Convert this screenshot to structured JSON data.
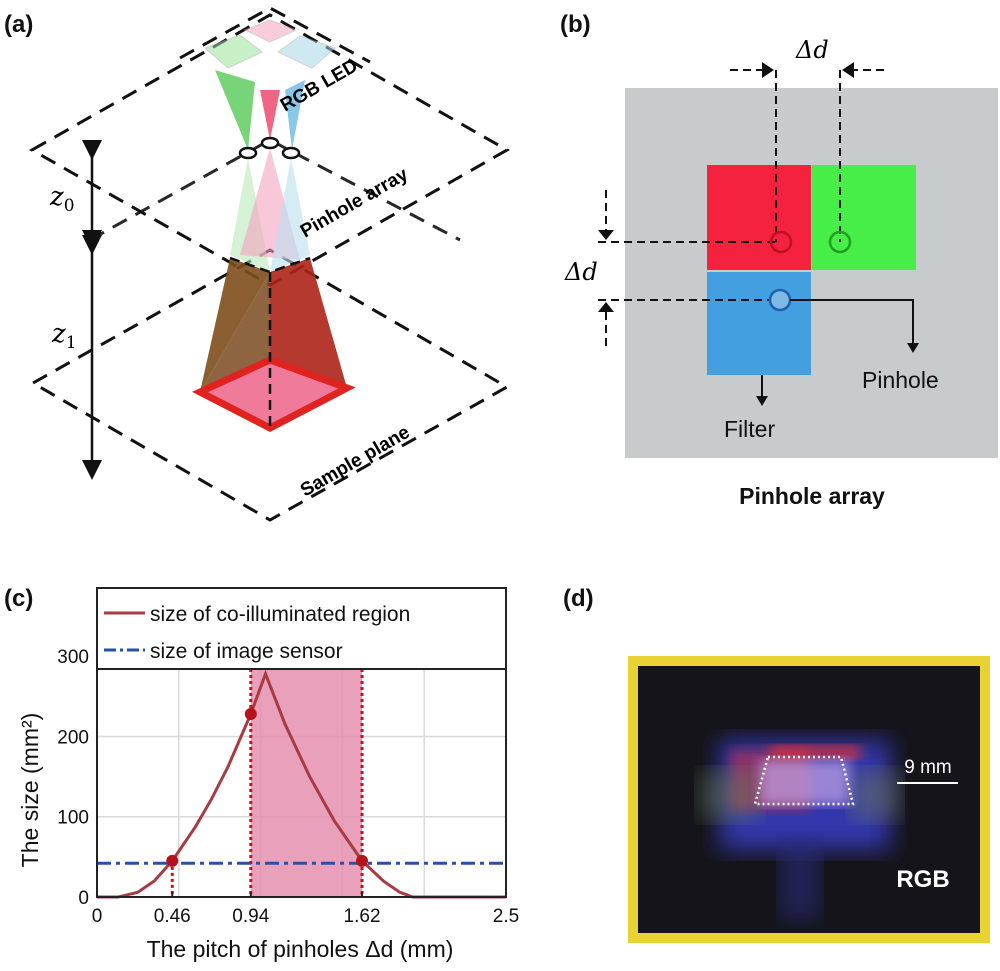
{
  "panels": {
    "a": {
      "label": "(a)",
      "led_label": "RGB LED",
      "pinhole_label": "Pinhole array",
      "sample_label": "Sample plane",
      "z0": "z",
      "z0_sub": "0",
      "z1": "z",
      "z1_sub": "1"
    },
    "b": {
      "label": "(b)",
      "delta_d_top": "Δd",
      "delta_d_left": "Δd",
      "pinhole_label": "Pinhole",
      "filter_label": "Filter",
      "caption": "Pinhole array",
      "colors": {
        "red": "#f5223f",
        "green": "#48ee48",
        "blue": "#449fe0",
        "background": "#c8cbcc"
      }
    },
    "c": {
      "label": "(c)"
    },
    "d": {
      "label": "(d)",
      "scale_text": "9 mm",
      "channel_text": "RGB",
      "frame_color": "#e9d233"
    }
  },
  "chart_data": {
    "type": "line",
    "xlabel": "The pitch of pinholes Δd (mm)",
    "ylabel": "The size (mm²)",
    "xlim": [
      0,
      2.5
    ],
    "ylim": [
      0,
      385
    ],
    "xticks": [
      0,
      0.46,
      0.94,
      1.62,
      2.5
    ],
    "xtick_labels": [
      "0",
      "0.46",
      "0.94",
      "1.62",
      "2.5"
    ],
    "yticks": [
      0,
      100,
      200,
      300
    ],
    "ytick_labels": [
      "0",
      "100",
      "200",
      "300"
    ],
    "grid": true,
    "grid_x": [
      0.5,
      1.0,
      1.5,
      2.0
    ],
    "legend_placement": "top",
    "series": [
      {
        "name": "size of co-illuminated region",
        "color": "#a83a44",
        "style": "solid",
        "x": [
          0,
          0.13,
          0.25,
          0.35,
          0.46,
          0.6,
          0.7,
          0.8,
          0.94,
          1.03,
          1.15,
          1.3,
          1.45,
          1.62,
          1.75,
          1.85,
          1.93,
          2.5
        ],
        "y": [
          0,
          0,
          6,
          20,
          45,
          87,
          122,
          162,
          228,
          278,
          215,
          150,
          95,
          45,
          20,
          6,
          0,
          0
        ]
      },
      {
        "name": "size of image sensor",
        "color": "#2a4fa8",
        "style": "dash-dot",
        "x": [
          0,
          2.5
        ],
        "y": [
          42,
          42
        ]
      }
    ],
    "markers": [
      {
        "x": 0.46,
        "y": 45
      },
      {
        "x": 0.94,
        "y": 228
      },
      {
        "x": 1.62,
        "y": 45
      }
    ],
    "vlines": [
      0.46,
      0.94,
      1.62
    ],
    "shaded_range": [
      0.94,
      1.62
    ],
    "shade_color": "#e58fae"
  }
}
